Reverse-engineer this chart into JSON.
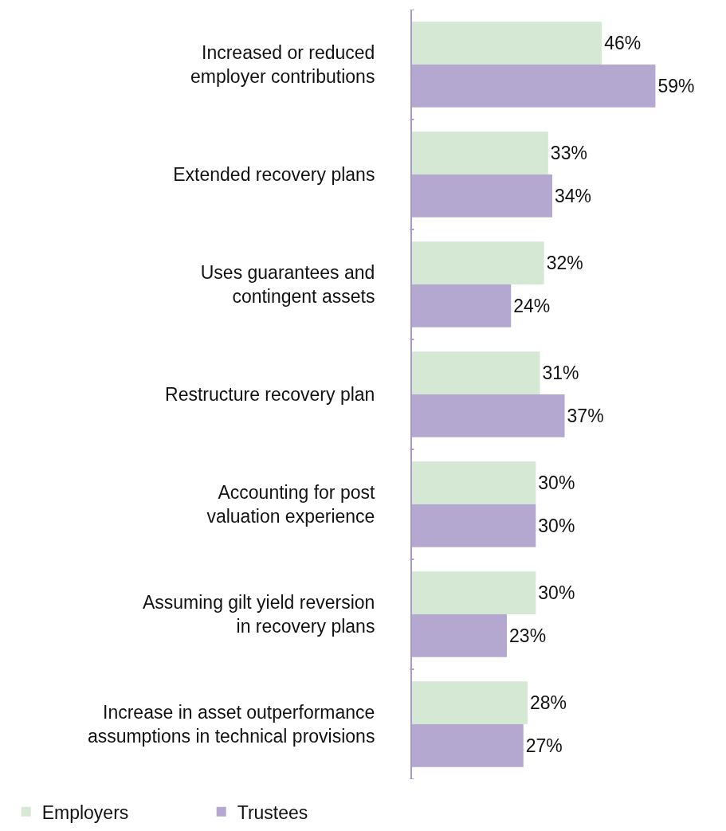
{
  "chart_data": {
    "type": "bar",
    "orientation": "horizontal",
    "categories": [
      "Increased or reduced\nemployer contributions",
      "Extended recovery plans",
      "Uses guarantees and\ncontingent assets",
      "Restructure recovery plan",
      "Accounting for post\nvaluation experience",
      "Assuming gilt yield reversion\nin recovery plans",
      "Increase in asset outperformance\nassumptions in technical provisions"
    ],
    "series": [
      {
        "name": "Employers",
        "color": "#d5e8d4",
        "values": [
          46,
          33,
          32,
          31,
          30,
          30,
          28
        ],
        "value_labels": [
          "46%",
          "33%",
          "32%",
          "31%",
          "30%",
          "30%",
          "28%"
        ]
      },
      {
        "name": "Trustees",
        "color": "#b4a7d0",
        "values": [
          59,
          34,
          24,
          37,
          30,
          23,
          27
        ],
        "value_labels": [
          "59%",
          "34%",
          "24%",
          "37%",
          "30%",
          "23%",
          "27%"
        ]
      }
    ],
    "tick_labels": "y",
    "grid": false,
    "legend": "bottom left"
  }
}
